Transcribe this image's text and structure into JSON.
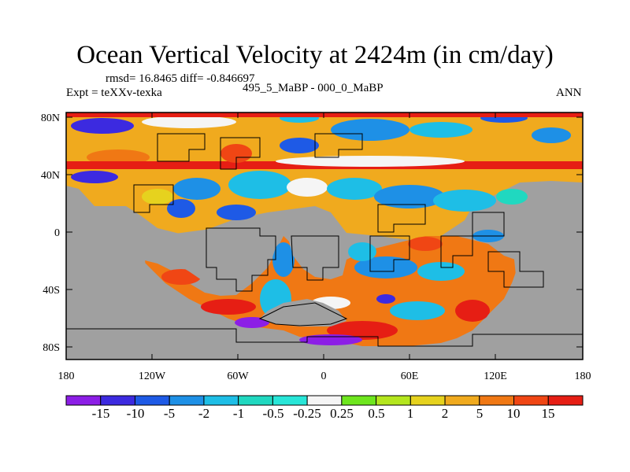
{
  "title": "Ocean Vertical Velocity at 2424m (in cm/day)",
  "stats": "rmsd= 16.8465 diff= -0.846697",
  "expt": "Expt = teXXv-texka",
  "comparison": "495_5_MaBP - 000_0_MaBP",
  "season": "ANN",
  "map": {
    "lon_labels": [
      "180",
      "120W",
      "60W",
      "0",
      "60E",
      "120E",
      "180"
    ],
    "lat_labels": [
      "80N",
      "40N",
      "0",
      "40S",
      "80S"
    ],
    "land_color": "#a0a0a0"
  },
  "colorbar": {
    "labels": [
      "-15",
      "-10",
      "-5",
      "-2",
      "-1",
      "-0.5",
      "-0.25",
      "0.25",
      "0.5",
      "1",
      "2",
      "5",
      "10",
      "15"
    ],
    "colors": [
      "#8c1ee6",
      "#3c2ae0",
      "#1e5ae6",
      "#1e90e6",
      "#1ebee6",
      "#20d8c0",
      "#28e6d8",
      "#f5f5f5",
      "#6ee61e",
      "#b4e61e",
      "#e6d21e",
      "#f0aa1e",
      "#f07814",
      "#f04614",
      "#e61e14"
    ]
  }
}
